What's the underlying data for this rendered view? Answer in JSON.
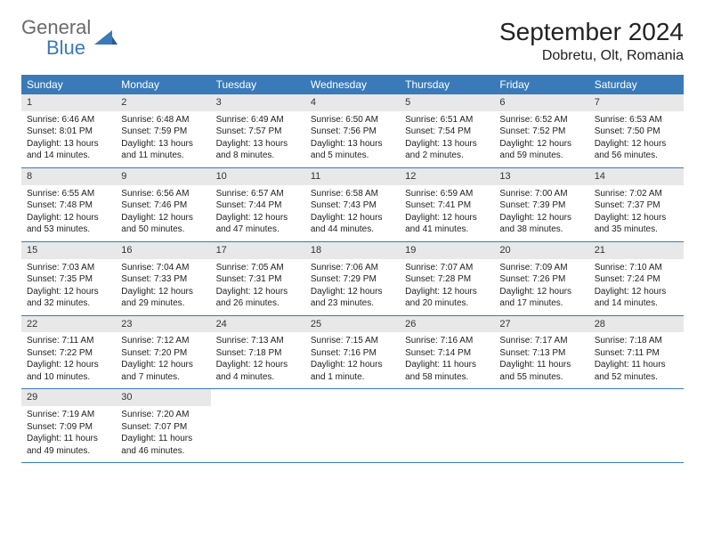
{
  "brand": {
    "word1": "General",
    "word2": "Blue"
  },
  "title": "September 2024",
  "location": "Dobretu, Olt, Romania",
  "colors": {
    "header_bg": "#3a7ab8",
    "daynum_bg": "#e8e8e8",
    "rule": "#3a7ab8",
    "text": "#222222",
    "logo_gray": "#6a6a6a",
    "logo_blue": "#3a7ab8",
    "page_bg": "#ffffff"
  },
  "weekdays": [
    "Sunday",
    "Monday",
    "Tuesday",
    "Wednesday",
    "Thursday",
    "Friday",
    "Saturday"
  ],
  "weeks": [
    [
      {
        "n": "1",
        "sr": "6:46 AM",
        "ss": "8:01 PM",
        "dl": "13 hours and 14 minutes."
      },
      {
        "n": "2",
        "sr": "6:48 AM",
        "ss": "7:59 PM",
        "dl": "13 hours and 11 minutes."
      },
      {
        "n": "3",
        "sr": "6:49 AM",
        "ss": "7:57 PM",
        "dl": "13 hours and 8 minutes."
      },
      {
        "n": "4",
        "sr": "6:50 AM",
        "ss": "7:56 PM",
        "dl": "13 hours and 5 minutes."
      },
      {
        "n": "5",
        "sr": "6:51 AM",
        "ss": "7:54 PM",
        "dl": "13 hours and 2 minutes."
      },
      {
        "n": "6",
        "sr": "6:52 AM",
        "ss": "7:52 PM",
        "dl": "12 hours and 59 minutes."
      },
      {
        "n": "7",
        "sr": "6:53 AM",
        "ss": "7:50 PM",
        "dl": "12 hours and 56 minutes."
      }
    ],
    [
      {
        "n": "8",
        "sr": "6:55 AM",
        "ss": "7:48 PM",
        "dl": "12 hours and 53 minutes."
      },
      {
        "n": "9",
        "sr": "6:56 AM",
        "ss": "7:46 PM",
        "dl": "12 hours and 50 minutes."
      },
      {
        "n": "10",
        "sr": "6:57 AM",
        "ss": "7:44 PM",
        "dl": "12 hours and 47 minutes."
      },
      {
        "n": "11",
        "sr": "6:58 AM",
        "ss": "7:43 PM",
        "dl": "12 hours and 44 minutes."
      },
      {
        "n": "12",
        "sr": "6:59 AM",
        "ss": "7:41 PM",
        "dl": "12 hours and 41 minutes."
      },
      {
        "n": "13",
        "sr": "7:00 AM",
        "ss": "7:39 PM",
        "dl": "12 hours and 38 minutes."
      },
      {
        "n": "14",
        "sr": "7:02 AM",
        "ss": "7:37 PM",
        "dl": "12 hours and 35 minutes."
      }
    ],
    [
      {
        "n": "15",
        "sr": "7:03 AM",
        "ss": "7:35 PM",
        "dl": "12 hours and 32 minutes."
      },
      {
        "n": "16",
        "sr": "7:04 AM",
        "ss": "7:33 PM",
        "dl": "12 hours and 29 minutes."
      },
      {
        "n": "17",
        "sr": "7:05 AM",
        "ss": "7:31 PM",
        "dl": "12 hours and 26 minutes."
      },
      {
        "n": "18",
        "sr": "7:06 AM",
        "ss": "7:29 PM",
        "dl": "12 hours and 23 minutes."
      },
      {
        "n": "19",
        "sr": "7:07 AM",
        "ss": "7:28 PM",
        "dl": "12 hours and 20 minutes."
      },
      {
        "n": "20",
        "sr": "7:09 AM",
        "ss": "7:26 PM",
        "dl": "12 hours and 17 minutes."
      },
      {
        "n": "21",
        "sr": "7:10 AM",
        "ss": "7:24 PM",
        "dl": "12 hours and 14 minutes."
      }
    ],
    [
      {
        "n": "22",
        "sr": "7:11 AM",
        "ss": "7:22 PM",
        "dl": "12 hours and 10 minutes."
      },
      {
        "n": "23",
        "sr": "7:12 AM",
        "ss": "7:20 PM",
        "dl": "12 hours and 7 minutes."
      },
      {
        "n": "24",
        "sr": "7:13 AM",
        "ss": "7:18 PM",
        "dl": "12 hours and 4 minutes."
      },
      {
        "n": "25",
        "sr": "7:15 AM",
        "ss": "7:16 PM",
        "dl": "12 hours and 1 minute."
      },
      {
        "n": "26",
        "sr": "7:16 AM",
        "ss": "7:14 PM",
        "dl": "11 hours and 58 minutes."
      },
      {
        "n": "27",
        "sr": "7:17 AM",
        "ss": "7:13 PM",
        "dl": "11 hours and 55 minutes."
      },
      {
        "n": "28",
        "sr": "7:18 AM",
        "ss": "7:11 PM",
        "dl": "11 hours and 52 minutes."
      }
    ],
    [
      {
        "n": "29",
        "sr": "7:19 AM",
        "ss": "7:09 PM",
        "dl": "11 hours and 49 minutes."
      },
      {
        "n": "30",
        "sr": "7:20 AM",
        "ss": "7:07 PM",
        "dl": "11 hours and 46 minutes."
      },
      null,
      null,
      null,
      null,
      null
    ]
  ],
  "labels": {
    "sunrise": "Sunrise:",
    "sunset": "Sunset:",
    "daylight": "Daylight:"
  }
}
